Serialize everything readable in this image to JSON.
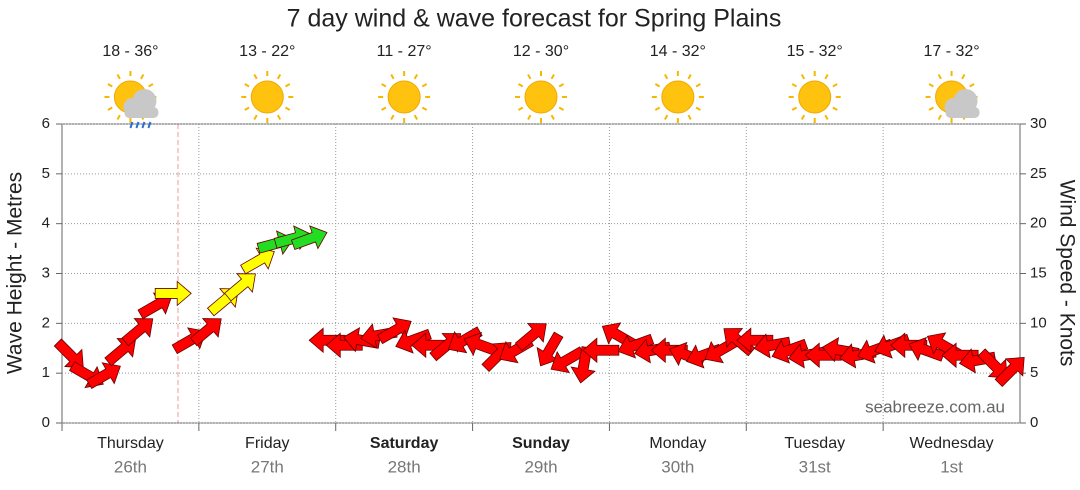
{
  "chart_data": {
    "type": "wind-arrows",
    "title": "7 day wind & wave forecast for Spring Plains",
    "y_label": "Wave Height - Metres",
    "y2_label": "Wind Speed - Knots",
    "watermark": "seabreeze.com.au",
    "ylim": [
      0,
      6
    ],
    "yticks": [
      0,
      1,
      2,
      3,
      4,
      5,
      6
    ],
    "y2lim": [
      0,
      30
    ],
    "y2ticks": [
      0,
      5,
      10,
      15,
      20,
      25,
      30
    ],
    "grid": true,
    "days": [
      {
        "name": "Thursday",
        "date": "26th",
        "temp": "18 - 36°",
        "icon": "rain",
        "bold": false
      },
      {
        "name": "Friday",
        "date": "27th",
        "temp": "13 - 22°",
        "icon": "sun",
        "bold": false
      },
      {
        "name": "Saturday",
        "date": "28th",
        "temp": "11 - 27°",
        "icon": "sun",
        "bold": true
      },
      {
        "name": "Sunday",
        "date": "29th",
        "temp": "12 - 30°",
        "icon": "sun",
        "bold": true
      },
      {
        "name": "Monday",
        "date": "30th",
        "temp": "14 - 32°",
        "icon": "sun",
        "bold": false
      },
      {
        "name": "Tuesday",
        "date": "31st",
        "temp": "15 - 32°",
        "icon": "sun",
        "bold": false
      },
      {
        "name": "Wednesday",
        "date": "1st",
        "temp": "17 - 32°",
        "icon": "cloud",
        "bold": false
      }
    ],
    "series": [
      {
        "name": "Wind",
        "axis": "y2",
        "values": [
          6.8,
          4.8,
          4.8,
          7.3,
          9.3,
          11.8,
          13,
          8.3,
          9.3,
          12.3,
          13.8,
          16.3,
          18,
          18.5,
          18.5,
          8.3,
          7.8,
          8.3,
          8.8,
          9.3,
          8.3,
          7.8,
          7.8,
          8.3,
          7.8,
          6.8,
          7.3,
          8.8,
          7.3,
          6.3,
          5.8,
          7.3,
          8.8,
          7.8,
          7.3,
          7.3,
          6.8,
          6.8,
          7.3,
          8.3,
          8.3,
          7.8,
          7.3,
          6.8,
          6.8,
          7.3,
          6.8,
          7.3,
          7.8,
          7.8,
          7.3,
          7.8,
          6.8,
          6.3,
          5.8,
          5.3
        ],
        "directions": [
          45,
          30,
          -30,
          -40,
          -40,
          -30,
          0,
          -30,
          -40,
          -40,
          -40,
          -30,
          -15,
          -15,
          -20,
          180,
          180,
          190,
          170,
          -30,
          160,
          180,
          -40,
          150,
          200,
          -45,
          150,
          -40,
          120,
          150,
          100,
          180,
          -150,
          160,
          170,
          180,
          200,
          160,
          150,
          -140,
          180,
          170,
          160,
          170,
          180,
          190,
          170,
          160,
          160,
          180,
          200,
          -150,
          180,
          170,
          45,
          -45
        ],
        "colors": [
          "#f00",
          "#f00",
          "#f00",
          "#f00",
          "#f00",
          "#f00",
          "#ff0",
          "#f00",
          "#f00",
          "#ff0",
          "#ff0",
          "#ff0",
          "#2d2",
          "#2d2",
          "#2d2",
          "#f00",
          "#f00",
          "#f00",
          "#f00",
          "#f00",
          "#f00",
          "#f00",
          "#f00",
          "#f00",
          "#f00",
          "#f00",
          "#f00",
          "#f00",
          "#f00",
          "#f00",
          "#f00",
          "#f00",
          "#f00",
          "#f00",
          "#f00",
          "#f00",
          "#f00",
          "#f00",
          "#f00",
          "#f00",
          "#f00",
          "#f00",
          "#f00",
          "#f00",
          "#f00",
          "#f00",
          "#f00",
          "#f00",
          "#f00",
          "#f00",
          "#f00",
          "#f00",
          "#f00",
          "#f00",
          "#f00",
          "#f00"
        ]
      }
    ]
  }
}
